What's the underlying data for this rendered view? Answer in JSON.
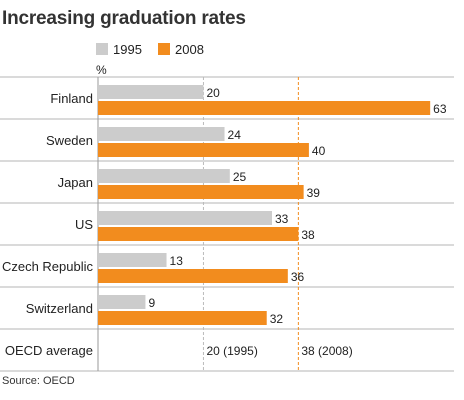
{
  "title": "Increasing graduation rates",
  "unit_label": "%",
  "source": "Source: OECD",
  "legend": [
    {
      "label": "1995",
      "color": "#cccccc"
    },
    {
      "label": "2008",
      "color": "#f28c1e"
    }
  ],
  "chart_data": {
    "type": "bar",
    "orientation": "horizontal",
    "title": "Increasing graduation rates",
    "ylabel": "%",
    "categories": [
      "Finland",
      "Sweden",
      "Japan",
      "US",
      "Czech Republic",
      "Switzerland"
    ],
    "series": [
      {
        "name": "1995",
        "color": "#cccccc",
        "values": [
          20,
          24,
          25,
          33,
          13,
          9
        ]
      },
      {
        "name": "2008",
        "color": "#f28c1e",
        "values": [
          63,
          40,
          39,
          38,
          36,
          32
        ]
      }
    ],
    "reference_lines": [
      {
        "category_label": "OECD average",
        "value": 20,
        "label": "20 (1995)",
        "series": "1995",
        "style": "dashed",
        "color": "#bbbbbb"
      },
      {
        "category_label": "OECD average",
        "value": 38,
        "label": "38 (2008)",
        "series": "2008",
        "style": "dashed",
        "color": "#f28c1e"
      }
    ],
    "xlim": [
      0,
      66
    ],
    "grid": false,
    "legend_position": "top-left"
  }
}
